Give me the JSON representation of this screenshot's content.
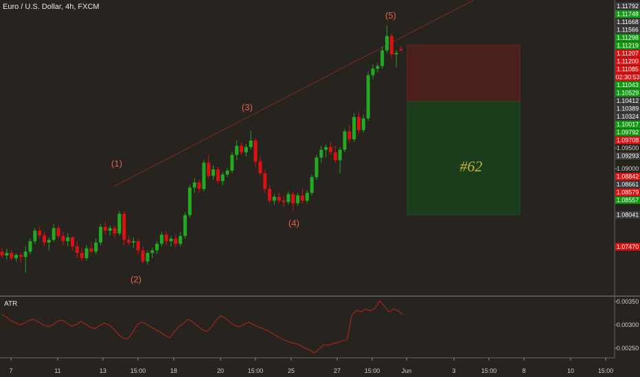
{
  "header": {
    "symbol": "Euro / U.S. Dollar, 4h, FXCM"
  },
  "atr": {
    "label": "ATR",
    "ticks": [
      "0.00350",
      "0.00300",
      "0.00250"
    ]
  },
  "chart_data": {
    "type": "candlestick",
    "title": "Euro / U.S. Dollar, 4h, FXCM",
    "ylim": [
      1.0725,
      1.119
    ],
    "x_ticks": [
      "7",
      "11",
      "13",
      "15:00",
      "18",
      "20",
      "15:00",
      "25",
      "27",
      "15:00",
      "Jun",
      "3",
      "15:00",
      "8",
      "10",
      "15:00"
    ],
    "price_tags": [
      {
        "value": "1.11792",
        "color": "#3a3a3a"
      },
      {
        "value": "1.11748",
        "color": "#119911"
      },
      {
        "value": "1.11668",
        "color": "#3a3a3a"
      },
      {
        "value": "1.11566",
        "color": "#3a3a3a"
      },
      {
        "value": "1.11298",
        "color": "#119911"
      },
      {
        "value": "1.11219",
        "color": "#119911"
      },
      {
        "value": "1.11207",
        "color": "#dd1111"
      },
      {
        "value": "1.11200",
        "color": "#dd1111"
      },
      {
        "value": "1.11085",
        "color": "#dd1111"
      },
      {
        "value": "02:30:53",
        "color": "#dd1111"
      },
      {
        "value": "1.11043",
        "color": "#119911"
      },
      {
        "value": "1.10529",
        "color": "#119911"
      },
      {
        "value": "1.10412",
        "color": "#3a3a3a"
      },
      {
        "value": "1.10389",
        "color": "#3a3a3a"
      },
      {
        "value": "1.10324",
        "color": "#3a3a3a"
      },
      {
        "value": "1.10017",
        "color": "#119911"
      },
      {
        "value": "1.09792",
        "color": "#119911"
      },
      {
        "value": "1.09708",
        "color": "#dd1111"
      },
      {
        "value": "1.09500",
        "color": "none"
      },
      {
        "value": "1.09293",
        "color": "#3a3a3a"
      },
      {
        "value": "1.09000",
        "color": "none"
      },
      {
        "value": "1.08842",
        "color": "#dd1111"
      },
      {
        "value": "1.08661",
        "color": "#3a3a3a"
      },
      {
        "value": "1.08579",
        "color": "#dd1111"
      },
      {
        "value": "1.08557",
        "color": "#119911"
      },
      {
        "value": "1.08041",
        "color": "#3a3a3a"
      },
      {
        "value": "1.07470",
        "color": "#dd1111"
      }
    ],
    "wave_labels": [
      "(1)",
      "(2)",
      "(3)",
      "(4)",
      "(5)"
    ],
    "annotation": "#62",
    "colors": {
      "up": "#22aa22",
      "down": "#dd1111",
      "background": "#272420",
      "trendline": "#6e2a22"
    },
    "candles": [
      {
        "o": 1.081,
        "h": 1.0816,
        "l": 1.08,
        "c": 1.0804
      },
      {
        "o": 1.0804,
        "h": 1.0814,
        "l": 1.0798,
        "c": 1.0808
      },
      {
        "o": 1.0808,
        "h": 1.0812,
        "l": 1.0796,
        "c": 1.08
      },
      {
        "o": 1.08,
        "h": 1.0808,
        "l": 1.0795,
        "c": 1.0805
      },
      {
        "o": 1.0805,
        "h": 1.081,
        "l": 1.0793,
        "c": 1.0802
      },
      {
        "o": 1.0802,
        "h": 1.0818,
        "l": 1.0778,
        "c": 1.081
      },
      {
        "o": 1.081,
        "h": 1.083,
        "l": 1.0806,
        "c": 1.0826
      },
      {
        "o": 1.0826,
        "h": 1.0846,
        "l": 1.0822,
        "c": 1.0842
      },
      {
        "o": 1.0842,
        "h": 1.0848,
        "l": 1.083,
        "c": 1.0835
      },
      {
        "o": 1.0835,
        "h": 1.084,
        "l": 1.0818,
        "c": 1.0824
      },
      {
        "o": 1.0824,
        "h": 1.0832,
        "l": 1.0812,
        "c": 1.0828
      },
      {
        "o": 1.0828,
        "h": 1.0852,
        "l": 1.0825,
        "c": 1.0846
      },
      {
        "o": 1.0846,
        "h": 1.085,
        "l": 1.083,
        "c": 1.0834
      },
      {
        "o": 1.0834,
        "h": 1.084,
        "l": 1.082,
        "c": 1.0826
      },
      {
        "o": 1.0826,
        "h": 1.0838,
        "l": 1.0818,
        "c": 1.0832
      },
      {
        "o": 1.0832,
        "h": 1.0835,
        "l": 1.0812,
        "c": 1.0818
      },
      {
        "o": 1.0818,
        "h": 1.0826,
        "l": 1.08,
        "c": 1.0808
      },
      {
        "o": 1.0808,
        "h": 1.0816,
        "l": 1.0795,
        "c": 1.08
      },
      {
        "o": 1.08,
        "h": 1.082,
        "l": 1.0796,
        "c": 1.0815
      },
      {
        "o": 1.0815,
        "h": 1.0825,
        "l": 1.0808,
        "c": 1.081
      },
      {
        "o": 1.081,
        "h": 1.083,
        "l": 1.0806,
        "c": 1.0824
      },
      {
        "o": 1.0824,
        "h": 1.0852,
        "l": 1.082,
        "c": 1.0848
      },
      {
        "o": 1.0848,
        "h": 1.0856,
        "l": 1.0836,
        "c": 1.0842
      },
      {
        "o": 1.0842,
        "h": 1.085,
        "l": 1.0835,
        "c": 1.0846
      },
      {
        "o": 1.0846,
        "h": 1.085,
        "l": 1.083,
        "c": 1.0838
      },
      {
        "o": 1.0838,
        "h": 1.0872,
        "l": 1.0835,
        "c": 1.0868
      },
      {
        "o": 1.0868,
        "h": 1.0872,
        "l": 1.082,
        "c": 1.0828
      },
      {
        "o": 1.0828,
        "h": 1.0834,
        "l": 1.082,
        "c": 1.0824
      },
      {
        "o": 1.0824,
        "h": 1.0832,
        "l": 1.0816,
        "c": 1.0826
      },
      {
        "o": 1.0826,
        "h": 1.083,
        "l": 1.0806,
        "c": 1.0812
      },
      {
        "o": 1.0812,
        "h": 1.0818,
        "l": 1.0792,
        "c": 1.0795
      },
      {
        "o": 1.0795,
        "h": 1.0812,
        "l": 1.079,
        "c": 1.0808
      },
      {
        "o": 1.0808,
        "h": 1.0816,
        "l": 1.08,
        "c": 1.0812
      },
      {
        "o": 1.0812,
        "h": 1.0826,
        "l": 1.0806,
        "c": 1.0822
      },
      {
        "o": 1.0822,
        "h": 1.084,
        "l": 1.0818,
        "c": 1.0836
      },
      {
        "o": 1.0836,
        "h": 1.0842,
        "l": 1.082,
        "c": 1.0826
      },
      {
        "o": 1.0826,
        "h": 1.0834,
        "l": 1.0818,
        "c": 1.083
      },
      {
        "o": 1.083,
        "h": 1.0836,
        "l": 1.0816,
        "c": 1.0822
      },
      {
        "o": 1.0822,
        "h": 1.084,
        "l": 1.0818,
        "c": 1.0834
      },
      {
        "o": 1.0834,
        "h": 1.087,
        "l": 1.083,
        "c": 1.0866
      },
      {
        "o": 1.0866,
        "h": 1.0912,
        "l": 1.0862,
        "c": 1.0908
      },
      {
        "o": 1.0908,
        "h": 1.0922,
        "l": 1.09,
        "c": 1.0916
      },
      {
        "o": 1.0916,
        "h": 1.092,
        "l": 1.09,
        "c": 1.0906
      },
      {
        "o": 1.0906,
        "h": 1.095,
        "l": 1.0902,
        "c": 1.0946
      },
      {
        "o": 1.0946,
        "h": 1.0958,
        "l": 1.0922,
        "c": 1.0926
      },
      {
        "o": 1.0926,
        "h": 1.0942,
        "l": 1.092,
        "c": 1.0936
      },
      {
        "o": 1.0936,
        "h": 1.094,
        "l": 1.0914,
        "c": 1.0918
      },
      {
        "o": 1.0918,
        "h": 1.0932,
        "l": 1.0912,
        "c": 1.0928
      },
      {
        "o": 1.0928,
        "h": 1.0938,
        "l": 1.0924,
        "c": 1.0934
      },
      {
        "o": 1.0934,
        "h": 1.0962,
        "l": 1.093,
        "c": 1.0958
      },
      {
        "o": 1.0958,
        "h": 1.098,
        "l": 1.095,
        "c": 1.0972
      },
      {
        "o": 1.0972,
        "h": 1.0978,
        "l": 1.0958,
        "c": 1.0962
      },
      {
        "o": 1.0962,
        "h": 1.0975,
        "l": 1.0956,
        "c": 1.097
      },
      {
        "o": 1.097,
        "h": 1.0995,
        "l": 1.0966,
        "c": 1.098
      },
      {
        "o": 1.098,
        "h": 1.0984,
        "l": 1.094,
        "c": 1.0948
      },
      {
        "o": 1.0948,
        "h": 1.0956,
        "l": 1.0926,
        "c": 1.093
      },
      {
        "o": 1.093,
        "h": 1.0936,
        "l": 1.09,
        "c": 1.0906
      },
      {
        "o": 1.0906,
        "h": 1.0912,
        "l": 1.0884,
        "c": 1.0888
      },
      {
        "o": 1.0888,
        "h": 1.0898,
        "l": 1.0882,
        "c": 1.0894
      },
      {
        "o": 1.0894,
        "h": 1.09,
        "l": 1.0884,
        "c": 1.0888
      },
      {
        "o": 1.0888,
        "h": 1.0894,
        "l": 1.0878,
        "c": 1.0886
      },
      {
        "o": 1.0886,
        "h": 1.0902,
        "l": 1.0882,
        "c": 1.0898
      },
      {
        "o": 1.0898,
        "h": 1.0902,
        "l": 1.0872,
        "c": 1.0884
      },
      {
        "o": 1.0884,
        "h": 1.09,
        "l": 1.088,
        "c": 1.0896
      },
      {
        "o": 1.0896,
        "h": 1.0906,
        "l": 1.0884,
        "c": 1.0888
      },
      {
        "o": 1.0888,
        "h": 1.0904,
        "l": 1.0884,
        "c": 1.09
      },
      {
        "o": 1.09,
        "h": 1.0928,
        "l": 1.0896,
        "c": 1.0924
      },
      {
        "o": 1.0924,
        "h": 1.0958,
        "l": 1.092,
        "c": 1.0954
      },
      {
        "o": 1.0954,
        "h": 1.0972,
        "l": 1.0946,
        "c": 1.0966
      },
      {
        "o": 1.0966,
        "h": 1.0974,
        "l": 1.0954,
        "c": 1.097
      },
      {
        "o": 1.097,
        "h": 1.0978,
        "l": 1.0958,
        "c": 1.0962
      },
      {
        "o": 1.0962,
        "h": 1.0972,
        "l": 1.0946,
        "c": 1.095
      },
      {
        "o": 1.095,
        "h": 1.097,
        "l": 1.093,
        "c": 1.0966
      },
      {
        "o": 1.0966,
        "h": 1.0998,
        "l": 1.0962,
        "c": 1.0994
      },
      {
        "o": 1.0994,
        "h": 1.1004,
        "l": 1.0976,
        "c": 1.0982
      },
      {
        "o": 1.0982,
        "h": 1.1022,
        "l": 1.0978,
        "c": 1.1016
      },
      {
        "o": 1.1016,
        "h": 1.1024,
        "l": 1.099,
        "c": 1.0996
      },
      {
        "o": 1.0996,
        "h": 1.102,
        "l": 1.0992,
        "c": 1.1014
      },
      {
        "o": 1.1014,
        "h": 1.1086,
        "l": 1.101,
        "c": 1.108
      },
      {
        "o": 1.108,
        "h": 1.1096,
        "l": 1.1074,
        "c": 1.109
      },
      {
        "o": 1.109,
        "h": 1.1098,
        "l": 1.1084,
        "c": 1.1094
      },
      {
        "o": 1.1094,
        "h": 1.1124,
        "l": 1.109,
        "c": 1.1118
      },
      {
        "o": 1.1118,
        "h": 1.1156,
        "l": 1.1114,
        "c": 1.114
      },
      {
        "o": 1.114,
        "h": 1.1144,
        "l": 1.1106,
        "c": 1.1112
      },
      {
        "o": 1.1112,
        "h": 1.1118,
        "l": 1.1092,
        "c": 1.1114
      },
      {
        "o": 1.112,
        "h": 1.1124,
        "l": 1.1116,
        "c": 1.1118
      }
    ],
    "atr_values": [
      0.00322,
      0.00318,
      0.0031,
      0.00305,
      0.003,
      0.00304,
      0.0031,
      0.00312,
      0.00306,
      0.003,
      0.00296,
      0.003,
      0.00308,
      0.0031,
      0.00304,
      0.00298,
      0.003,
      0.00308,
      0.00302,
      0.00295,
      0.00292,
      0.00298,
      0.00304,
      0.003,
      0.00292,
      0.0028,
      0.00272,
      0.0027,
      0.00282,
      0.003,
      0.00306,
      0.00302,
      0.00295,
      0.0029,
      0.00285,
      0.00278,
      0.00272,
      0.00285,
      0.00296,
      0.00304,
      0.00312,
      0.00306,
      0.00298,
      0.0029,
      0.00286,
      0.00296,
      0.0031,
      0.0032,
      0.00314,
      0.00305,
      0.00298,
      0.00296,
      0.00302,
      0.00306,
      0.003,
      0.00296,
      0.00292,
      0.00288,
      0.00282,
      0.00276,
      0.0027,
      0.00266,
      0.00262,
      0.0026,
      0.00256,
      0.0025,
      0.00246,
      0.0024,
      0.00248,
      0.00258,
      0.00256,
      0.0026,
      0.00262,
      0.00266,
      0.00268,
      0.0032,
      0.00332,
      0.00328,
      0.00334,
      0.0033,
      0.00336,
      0.00352,
      0.0034,
      0.00328,
      0.00334,
      0.0033,
      0.00322
    ]
  }
}
